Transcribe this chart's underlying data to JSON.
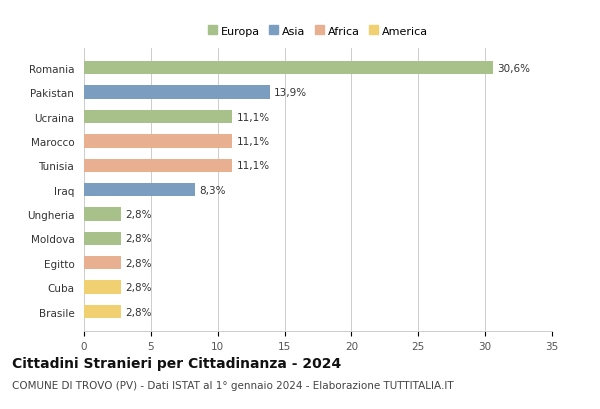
{
  "categories": [
    "Romania",
    "Pakistan",
    "Ucraina",
    "Marocco",
    "Tunisia",
    "Iraq",
    "Ungheria",
    "Moldova",
    "Egitto",
    "Cuba",
    "Brasile"
  ],
  "values": [
    30.6,
    13.9,
    11.1,
    11.1,
    11.1,
    8.3,
    2.8,
    2.8,
    2.8,
    2.8,
    2.8
  ],
  "labels": [
    "30,6%",
    "13,9%",
    "11,1%",
    "11,1%",
    "11,1%",
    "8,3%",
    "2,8%",
    "2,8%",
    "2,8%",
    "2,8%",
    "2,8%"
  ],
  "continent": [
    "Europa",
    "Asia",
    "Europa",
    "Africa",
    "Africa",
    "Asia",
    "Europa",
    "Europa",
    "Africa",
    "America",
    "America"
  ],
  "colors": {
    "Europa": "#a8c08a",
    "Asia": "#7b9dbf",
    "Africa": "#e8b090",
    "America": "#f0d070"
  },
  "legend_order": [
    "Europa",
    "Asia",
    "Africa",
    "America"
  ],
  "xlim": [
    0,
    35
  ],
  "xticks": [
    0,
    5,
    10,
    15,
    20,
    25,
    30,
    35
  ],
  "title": "Cittadini Stranieri per Cittadinanza - 2024",
  "subtitle": "COMUNE DI TROVO (PV) - Dati ISTAT al 1° gennaio 2024 - Elaborazione TUTTITALIA.IT",
  "bg_color": "#ffffff",
  "grid_color": "#cccccc",
  "title_fontsize": 10,
  "subtitle_fontsize": 7.5,
  "label_fontsize": 7.5,
  "tick_fontsize": 7.5,
  "bar_height": 0.55
}
